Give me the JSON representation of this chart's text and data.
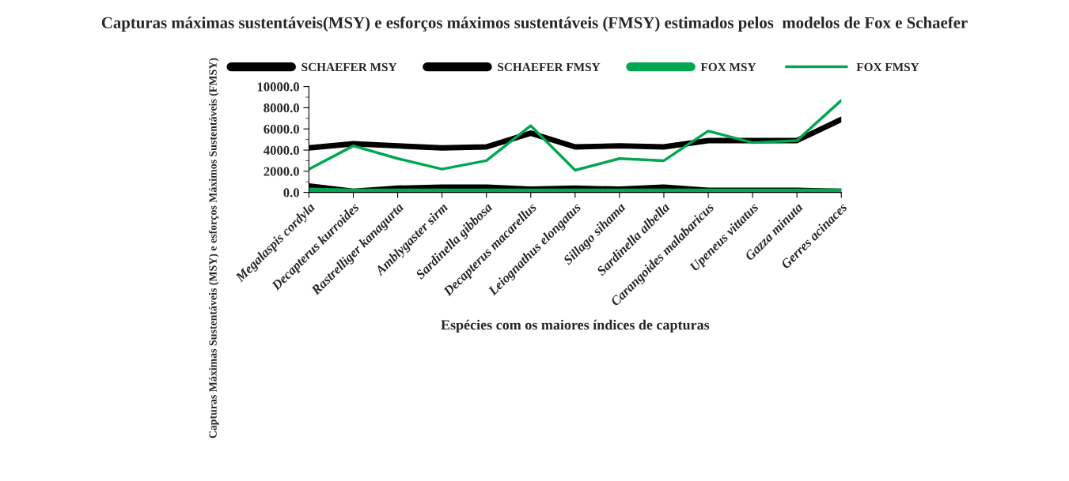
{
  "chart_data": {
    "type": "line",
    "title": "Capturas máximas sustentáveis(MSY) e esforços máximos sustentáveis (FMSY) estimados pelos  modelos de Fox e Schaefer",
    "xlabel": "Espécies com os maiores índices de capturas",
    "ylabel": "Capturas Máximas Sustentáveis (MSY) e esforços Máximos Sustentáveis (FMSY)",
    "categories": [
      "Megalaspis cordyla",
      "Decapterus kurroides",
      "Rastrelliger kanagurta",
      "Amblygaster sirm",
      "Sardinella gibbosa",
      "Decapterus macarellus",
      "Leiognathus elongatus",
      "Sillago sihama",
      "Sardinella albella",
      "Carangoides malabaricus",
      "Upeneus vittatus",
      "Gazza minuta",
      "Gerres acinaces"
    ],
    "series": [
      {
        "name": "SCHAEFER MSY",
        "color": "#000000",
        "values": [
          600,
          100,
          400,
          500,
          500,
          300,
          400,
          300,
          500,
          200,
          200,
          200,
          100
        ]
      },
      {
        "name": "SCHAEFER FMSY",
        "color": "#000000",
        "values": [
          4200,
          4600,
          4400,
          4200,
          4300,
          5600,
          4300,
          4400,
          4300,
          4900,
          4900,
          4900,
          6900
        ]
      },
      {
        "name": "FOX MSY",
        "color": "#00a650",
        "values": [
          200,
          100,
          100,
          100,
          100,
          100,
          100,
          100,
          100,
          100,
          100,
          100,
          100
        ]
      },
      {
        "name": "FOX FMSY",
        "color": "#00a650",
        "values": [
          2200,
          4400,
          3200,
          2200,
          3000,
          6300,
          2100,
          3200,
          3000,
          5800,
          4700,
          4900,
          8700
        ]
      }
    ],
    "ylim": [
      0,
      10000
    ],
    "yticks": [
      {
        "value": 0,
        "label": "0.0"
      },
      {
        "value": 2000,
        "label": "2000.0"
      },
      {
        "value": 4000,
        "label": "4000.0"
      },
      {
        "value": 6000,
        "label": "6000.0"
      },
      {
        "value": 8000,
        "label": "8000.0"
      },
      {
        "value": 10000,
        "label": "10000.0"
      }
    ],
    "legend": "top",
    "grid": false,
    "marker": "none",
    "line_style": "solid"
  }
}
